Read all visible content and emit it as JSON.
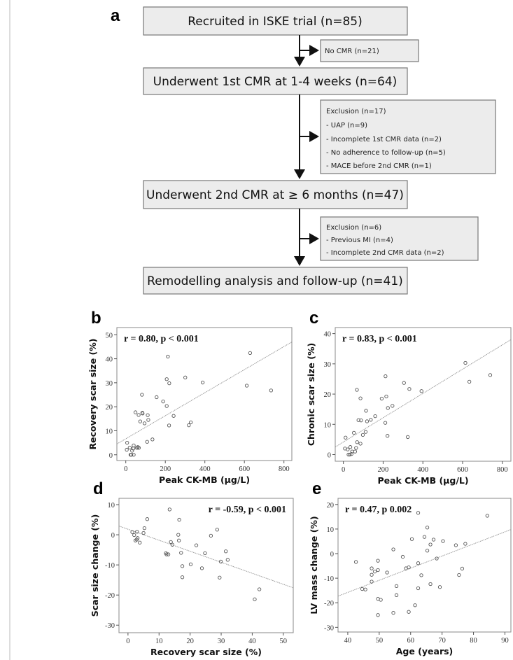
{
  "panel_a": {
    "label": "a",
    "boxes": [
      "Recruited in ISKE trial (n=85)",
      "Underwent 1st CMR at 1-4 weeks (n=64)",
      "Underwent 2nd CMR at ≥ 6 months (n=47)",
      "Remodelling analysis and follow-up (n=41)"
    ],
    "side_boxes": [
      {
        "lines": [
          "No CMR (n=21)"
        ]
      },
      {
        "lines": [
          "Exclusion (n=17)",
          "- UAP (n=9)",
          "- Incomplete 1st CMR data (n=2)",
          "- No adherence to follow-up (n=5)",
          "- MACE before 2nd CMR (n=1)"
        ]
      },
      {
        "lines": [
          "Exclusion (n=6)",
          "- Previous MI (n=4)",
          "- Incomplete 2nd CMR data (n=2)"
        ]
      }
    ]
  },
  "chart_data": [
    {
      "panel": "b",
      "type": "scatter",
      "annotation": "r = 0.80, p < 0.001",
      "xlabel": "Peak CK-MB (µg/L)",
      "ylabel": "Recovery scar size (%)",
      "xlim": [
        -45,
        840
      ],
      "ylim": [
        -2.4,
        53
      ],
      "xticks": [
        0,
        200,
        400,
        600,
        800
      ],
      "yticks": [
        0,
        10,
        20,
        30,
        40,
        50
      ],
      "grid": false,
      "trendline": [
        [
          -45,
          4.5
        ],
        [
          840,
          47
        ]
      ],
      "points": [
        [
          7,
          5
        ],
        [
          5,
          2.1
        ],
        [
          20,
          3
        ],
        [
          40,
          3.9
        ],
        [
          38,
          2.6
        ],
        [
          32,
          1.7
        ],
        [
          56,
          2.9
        ],
        [
          66,
          2.9
        ],
        [
          61,
          3.2
        ],
        [
          24,
          0
        ],
        [
          28,
          0
        ],
        [
          40,
          0
        ],
        [
          49,
          17.7
        ],
        [
          65,
          16.6
        ],
        [
          84,
          17.5
        ],
        [
          85,
          17.2
        ],
        [
          82,
          25
        ],
        [
          73,
          13.9
        ],
        [
          95,
          13.1
        ],
        [
          111,
          16.5
        ],
        [
          114,
          14.5
        ],
        [
          108,
          5.4
        ],
        [
          135,
          6.4
        ],
        [
          156,
          24
        ],
        [
          189,
          22.2
        ],
        [
          207,
          31.5
        ],
        [
          213,
          40.9
        ],
        [
          207,
          20.3
        ],
        [
          220,
          29.8
        ],
        [
          219,
          12.2
        ],
        [
          242,
          16.2
        ],
        [
          301,
          32.2
        ],
        [
          319,
          12.3
        ],
        [
          329,
          13.5
        ],
        [
          389,
          30.1
        ],
        [
          612,
          28.8
        ],
        [
          629,
          42.4
        ],
        [
          735,
          26.8
        ]
      ]
    },
    {
      "panel": "c",
      "type": "scatter",
      "annotation": "r = 0.83, p < 0.001",
      "xlabel": "Peak CK-MB (µg/L)",
      "ylabel": "Chronic scar size (%)",
      "xlim": [
        -41,
        843
      ],
      "ylim": [
        -2.2,
        42
      ],
      "xticks": [
        0,
        200,
        400,
        600,
        800
      ],
      "yticks": [
        0,
        10,
        20,
        30,
        40
      ],
      "grid": false,
      "trendline": [
        [
          -41,
          2.5
        ],
        [
          843,
          38
        ]
      ],
      "points": [
        [
          11,
          5.6
        ],
        [
          8,
          2
        ],
        [
          22,
          1.7
        ],
        [
          35,
          2.5
        ],
        [
          44,
          1
        ],
        [
          59,
          1
        ],
        [
          64,
          2.2
        ],
        [
          41,
          0.2
        ],
        [
          26,
          0
        ],
        [
          32,
          0
        ],
        [
          53,
          7.2
        ],
        [
          69,
          4.1
        ],
        [
          86,
          3.6
        ],
        [
          68,
          21.4
        ],
        [
          86,
          18.6
        ],
        [
          76,
          11.4
        ],
        [
          89,
          11.3
        ],
        [
          98,
          6.5
        ],
        [
          112,
          7.5
        ],
        [
          114,
          14.5
        ],
        [
          119,
          11
        ],
        [
          138,
          11.5
        ],
        [
          160,
          12.7
        ],
        [
          193,
          18.5
        ],
        [
          212,
          25.9
        ],
        [
          216,
          19.2
        ],
        [
          224,
          15.4
        ],
        [
          211,
          10.5
        ],
        [
          222,
          6.2
        ],
        [
          247,
          16.1
        ],
        [
          305,
          23.7
        ],
        [
          332,
          21.7
        ],
        [
          324,
          5.8
        ],
        [
          393,
          21
        ],
        [
          614,
          30.3
        ],
        [
          634,
          24.1
        ],
        [
          739,
          26.3
        ]
      ]
    },
    {
      "panel": "d",
      "type": "scatter",
      "annotation": "r = -0.59, p < 0.001",
      "xlabel": "Recovery scar size (%)",
      "ylabel": "Scar size change (%)",
      "xlim": [
        -2.9,
        53.2
      ],
      "ylim": [
        -32.5,
        12.1
      ],
      "xticks": [
        0,
        10,
        20,
        30,
        40,
        50
      ],
      "yticks": [
        -30,
        -20,
        -10,
        0,
        10
      ],
      "grid": false,
      "trendline": [
        [
          -2.9,
          2.9
        ],
        [
          53.2,
          -17.6
        ]
      ],
      "points": [
        [
          1.4,
          0.9
        ],
        [
          2,
          -0.1
        ],
        [
          2.9,
          1
        ],
        [
          2.4,
          -1.9
        ],
        [
          2.8,
          -1.6
        ],
        [
          3.1,
          -1.1
        ],
        [
          3.8,
          -2.6
        ],
        [
          5,
          0.6
        ],
        [
          5.3,
          2.2
        ],
        [
          6.2,
          5.2
        ],
        [
          12.2,
          -6.1
        ],
        [
          12.4,
          -6.5
        ],
        [
          13,
          -6.5
        ],
        [
          13.4,
          8.4
        ],
        [
          13.8,
          -2.4
        ],
        [
          14.3,
          -3.3
        ],
        [
          16.2,
          0
        ],
        [
          16.4,
          -1.9
        ],
        [
          16.5,
          5
        ],
        [
          17.1,
          -6
        ],
        [
          17.5,
          -10.4
        ],
        [
          17.5,
          -14.1
        ],
        [
          20.2,
          -9.8
        ],
        [
          22,
          -3.5
        ],
        [
          23.8,
          -11.1
        ],
        [
          24.8,
          -6.1
        ],
        [
          26.7,
          -0.3
        ],
        [
          28.7,
          1.7
        ],
        [
          29.5,
          -14.2
        ],
        [
          29.9,
          -8.9
        ],
        [
          31.5,
          -5.5
        ],
        [
          32.1,
          -8.3
        ],
        [
          40.8,
          -21.4
        ],
        [
          42.3,
          -18.1
        ]
      ]
    },
    {
      "panel": "e",
      "type": "scatter",
      "annotation": "r = 0.47, p 0.002",
      "xlabel": "Age (years)",
      "ylabel": "LV mass change (%)",
      "xlim": [
        36.9,
        91.9
      ],
      "ylim": [
        -31.9,
        22.5
      ],
      "xticks": [
        40,
        50,
        60,
        70,
        80,
        90
      ],
      "yticks": [
        -30,
        -20,
        -10,
        0,
        10,
        20
      ],
      "grid": false,
      "trendline": [
        [
          36.9,
          -17.3
        ],
        [
          91.9,
          9.8
        ]
      ],
      "points": [
        [
          42.6,
          -3.4
        ],
        [
          44.6,
          -14.4
        ],
        [
          45.6,
          -14.6
        ],
        [
          47.6,
          -6
        ],
        [
          47.6,
          -8.6
        ],
        [
          47.6,
          -11.4
        ],
        [
          48.6,
          -7.3
        ],
        [
          49.6,
          -2.9
        ],
        [
          49.6,
          -6.7
        ],
        [
          49.6,
          -18.4
        ],
        [
          50.5,
          -18.8
        ],
        [
          49.6,
          -25
        ],
        [
          52.5,
          -7.7
        ],
        [
          54.5,
          1.7
        ],
        [
          54.5,
          -24.1
        ],
        [
          55.5,
          -13.2
        ],
        [
          55.5,
          -16.9
        ],
        [
          57.5,
          -1.3
        ],
        [
          58.5,
          -6
        ],
        [
          59.4,
          -5.6
        ],
        [
          59.4,
          -23.7
        ],
        [
          60.4,
          5.9
        ],
        [
          61.4,
          -21
        ],
        [
          62.4,
          16.6
        ],
        [
          62.4,
          -3.9
        ],
        [
          62.4,
          -14.1
        ],
        [
          63.4,
          -8.8
        ],
        [
          64.4,
          6.8
        ],
        [
          65.3,
          10.6
        ],
        [
          65.3,
          1.2
        ],
        [
          66.3,
          3.7
        ],
        [
          66.3,
          -12.4
        ],
        [
          67.3,
          5.7
        ],
        [
          68.3,
          -2
        ],
        [
          69.3,
          -13.6
        ],
        [
          70.3,
          5.1
        ],
        [
          74.4,
          3.4
        ],
        [
          75.4,
          -8.7
        ],
        [
          76.4,
          -6.1
        ],
        [
          77.4,
          4
        ],
        [
          84.4,
          15.4
        ]
      ]
    }
  ]
}
